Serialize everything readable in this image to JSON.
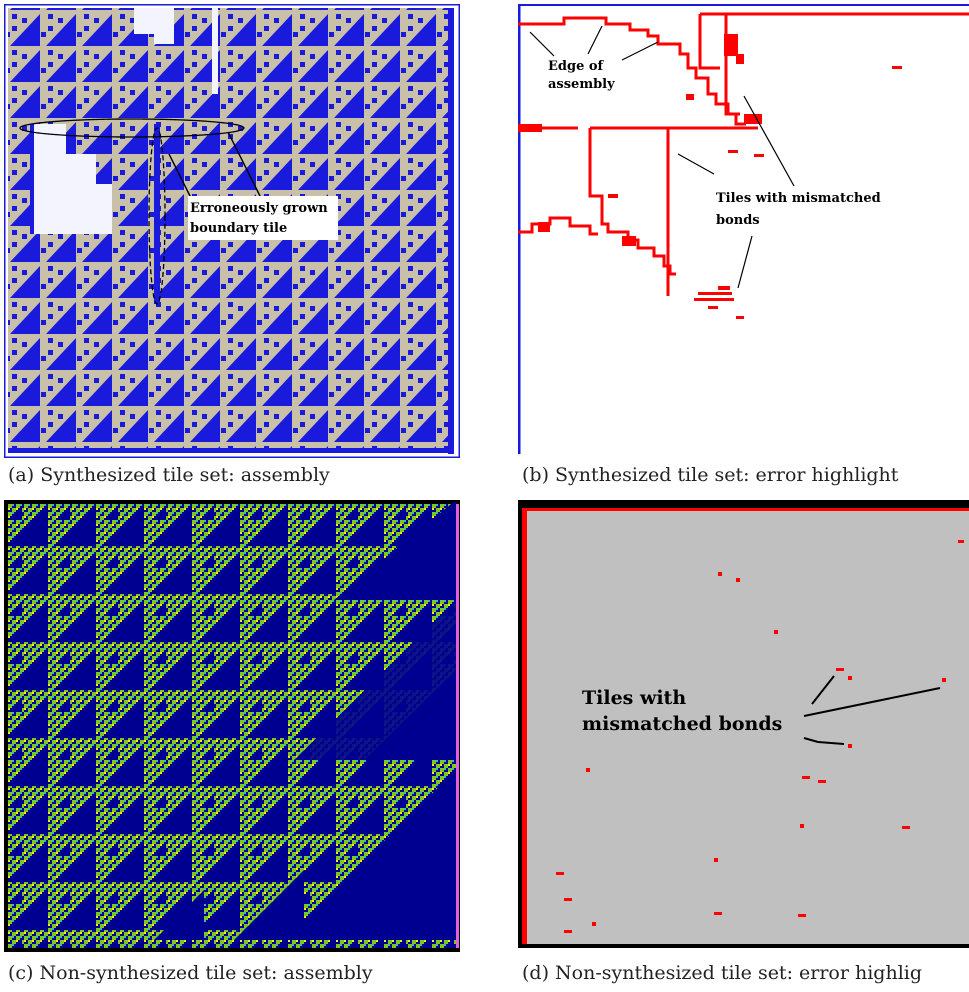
{
  "captions": {
    "a": "(a) Synthesized tile set: assembly",
    "b": "(b) Synthesized tile set: error highlight",
    "c": "(c) Non-synthesized tile set: assembly",
    "d": "(d) Non-synthesized tile set: error highlig"
  },
  "panel_a": {
    "annotation_line1": "Erroneously grown",
    "annotation_line2": "boundary tile"
  },
  "panel_b": {
    "edge_line1": "Edge of",
    "edge_line2": "assembly",
    "tiles_line1": "Tiles with mismatched",
    "tiles_line2": "bonds"
  },
  "panel_d": {
    "tiles_line1": "Tiles with",
    "tiles_line2": "mismatched bonds"
  },
  "colors": {
    "tile_blue": "#1a1adc",
    "tile_tan": "#c8c0a8",
    "error_red": "#ff0000",
    "panel_c_blue": "#000090",
    "panel_c_green": "#7cc820",
    "panel_c_yellow": "#f0f000",
    "panel_d_bg": "#c0c0c0"
  }
}
